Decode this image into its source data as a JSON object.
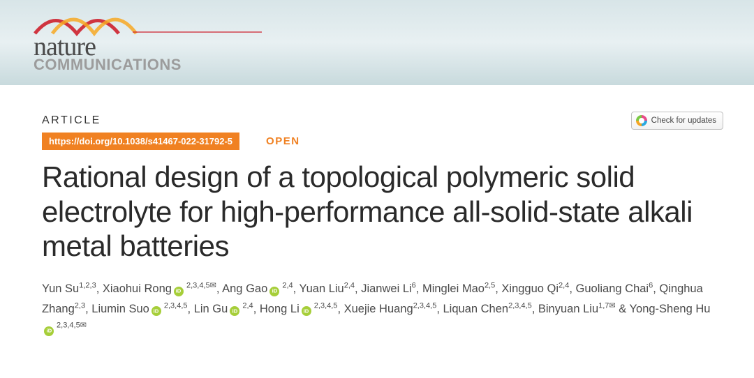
{
  "branding": {
    "nature": "nature",
    "communications": "COMMUNICATIONS",
    "wave_colors": {
      "red": "#cd202c",
      "orange": "#f7a823",
      "line": "#cd202c"
    }
  },
  "header": {
    "article_label": "ARTICLE",
    "doi": "https://doi.org/10.1038/s41467-022-31792-5",
    "open_label": "OPEN",
    "check_updates": "Check for updates"
  },
  "title": "Rational design of a topological polymeric solid electrolyte for high-performance all-solid-state alkali metal batteries",
  "authors": [
    {
      "name": "Yun Su",
      "affil": "1,2,3"
    },
    {
      "name": "Xiaohui Rong",
      "affil": " 2,3,4,5",
      "orcid": true,
      "corr": true
    },
    {
      "name": "Ang Gao",
      "affil": " 2,4",
      "orcid": true
    },
    {
      "name": "Yuan Liu",
      "affil": "2,4"
    },
    {
      "name": "Jianwei Li",
      "affil": "6"
    },
    {
      "name": "Minglei Mao",
      "affil": "2,5"
    },
    {
      "name": "Xingguo Qi",
      "affil": "2,4"
    },
    {
      "name": "Guoliang Chai",
      "affil": "6"
    },
    {
      "name": "Qinghua Zhang",
      "affil": "2,3"
    },
    {
      "name": "Liumin Suo",
      "affil": " 2,3,4,5",
      "orcid": true
    },
    {
      "name": "Lin Gu",
      "affil": " 2,4",
      "orcid": true
    },
    {
      "name": "Hong Li",
      "affil": " 2,3,4,5",
      "orcid": true
    },
    {
      "name": "Xuejie Huang",
      "affil": "2,3,4,5"
    },
    {
      "name": "Liquan Chen",
      "affil": "2,3,4,5"
    },
    {
      "name": "Binyuan Liu",
      "affil": "1,7",
      "corr": true
    },
    {
      "name": "Yong-Sheng Hu",
      "affil": " 2,3,4,5",
      "orcid": true,
      "corr": true,
      "amp": true
    }
  ],
  "colors": {
    "doi_bg": "#f08122",
    "orcid_bg": "#a6ce39",
    "banner_top": "#d8e5e8",
    "banner_bot": "#c8dadd"
  }
}
